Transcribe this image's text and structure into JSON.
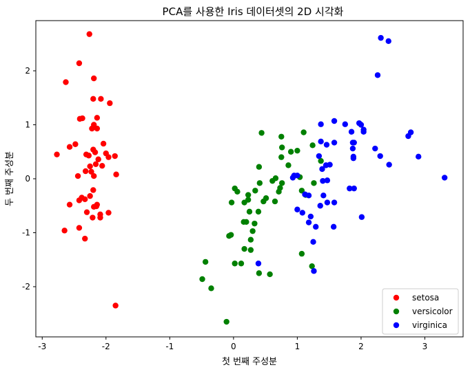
{
  "chart_data": {
    "type": "scatter",
    "title": "PCA를 사용한 Iris 데이터셋의 2D 시각화",
    "xlabel": "첫 번째 주성분",
    "ylabel": "두 번째 주성분",
    "xlim": [
      -3.1,
      3.6
    ],
    "ylim": [
      -2.93,
      2.93
    ],
    "xticks": [
      -3,
      -2,
      -1,
      0,
      1,
      2,
      3
    ],
    "xtick_labels": [
      "-3",
      "-2",
      "-1",
      "0",
      "1",
      "2",
      "3"
    ],
    "yticks": [
      -2,
      -1,
      0,
      1,
      2
    ],
    "ytick_labels": [
      "-2",
      "-1",
      "0",
      "1",
      "2"
    ],
    "grid": false,
    "legend_position": "lower-right",
    "series": [
      {
        "name": "setosa",
        "color": "#ff0000",
        "points": [
          [
            -2.26,
            2.68
          ],
          [
            -2.42,
            2.14
          ],
          [
            -2.63,
            1.79
          ],
          [
            -2.19,
            1.86
          ],
          [
            -2.08,
            1.48
          ],
          [
            -2.2,
            1.48
          ],
          [
            -1.94,
            1.4
          ],
          [
            -2.41,
            1.11
          ],
          [
            -2.37,
            1.12
          ],
          [
            -2.14,
            1.13
          ],
          [
            -2.19,
            1.0
          ],
          [
            -2.22,
            0.93
          ],
          [
            -2.14,
            0.93
          ],
          [
            -2.48,
            0.64
          ],
          [
            -2.57,
            0.59
          ],
          [
            -2.04,
            0.65
          ],
          [
            -2.77,
            0.45
          ],
          [
            -2.31,
            0.45
          ],
          [
            -2.27,
            0.43
          ],
          [
            -2.0,
            0.47
          ],
          [
            -1.96,
            0.4
          ],
          [
            -1.86,
            0.42
          ],
          [
            -2.2,
            0.54
          ],
          [
            -2.17,
            0.49
          ],
          [
            -2.12,
            0.36
          ],
          [
            -2.16,
            0.27
          ],
          [
            -2.06,
            0.24
          ],
          [
            -2.25,
            0.23
          ],
          [
            -2.32,
            0.14
          ],
          [
            -2.23,
            0.13
          ],
          [
            -2.44,
            0.05
          ],
          [
            -2.19,
            0.05
          ],
          [
            -1.84,
            0.08
          ],
          [
            -2.2,
            -0.21
          ],
          [
            -2.38,
            -0.35
          ],
          [
            -2.33,
            -0.38
          ],
          [
            -2.42,
            -0.4
          ],
          [
            -2.25,
            -0.32
          ],
          [
            -2.57,
            -0.48
          ],
          [
            -2.14,
            -0.48
          ],
          [
            -2.19,
            -0.52
          ],
          [
            -2.15,
            -0.51
          ],
          [
            -2.3,
            -0.62
          ],
          [
            -2.09,
            -0.66
          ],
          [
            -1.96,
            -0.63
          ],
          [
            -2.09,
            -0.72
          ],
          [
            -2.21,
            -0.72
          ],
          [
            -2.42,
            -0.91
          ],
          [
            -2.65,
            -0.96
          ],
          [
            -2.33,
            -1.11
          ],
          [
            -1.85,
            -2.35
          ]
        ]
      },
      {
        "name": "versicolor",
        "color": "#008000",
        "points": [
          [
            0.44,
            0.85
          ],
          [
            1.1,
            0.86
          ],
          [
            0.75,
            0.78
          ],
          [
            1.24,
            0.62
          ],
          [
            0.76,
            0.58
          ],
          [
            1.0,
            0.52
          ],
          [
            0.9,
            0.5
          ],
          [
            1.37,
            0.33
          ],
          [
            0.75,
            0.4
          ],
          [
            0.86,
            0.25
          ],
          [
            0.4,
            0.22
          ],
          [
            0.66,
            0.01
          ],
          [
            0.61,
            -0.04
          ],
          [
            0.76,
            -0.08
          ],
          [
            1.04,
            0.03
          ],
          [
            0.41,
            -0.08
          ],
          [
            0.73,
            -0.17
          ],
          [
            0.02,
            -0.18
          ],
          [
            0.06,
            -0.24
          ],
          [
            0.71,
            -0.24
          ],
          [
            1.07,
            -0.22
          ],
          [
            0.34,
            -0.22
          ],
          [
            0.23,
            -0.3
          ],
          [
            0.51,
            -0.36
          ],
          [
            0.23,
            -0.39
          ],
          [
            1.13,
            -0.3
          ],
          [
            1.26,
            -0.08
          ],
          [
            0.47,
            -0.42
          ],
          [
            0.65,
            -0.42
          ],
          [
            -0.03,
            -0.44
          ],
          [
            0.17,
            -0.44
          ],
          [
            0.25,
            -0.61
          ],
          [
            0.39,
            -0.61
          ],
          [
            0.2,
            -0.8
          ],
          [
            0.16,
            -0.8
          ],
          [
            0.33,
            -0.83
          ],
          [
            0.3,
            -0.97
          ],
          [
            0.27,
            -1.13
          ],
          [
            -0.04,
            -1.04
          ],
          [
            -0.07,
            -1.06
          ],
          [
            0.17,
            -1.3
          ],
          [
            0.27,
            -1.32
          ],
          [
            1.07,
            -1.39
          ],
          [
            0.02,
            -1.57
          ],
          [
            0.12,
            -1.57
          ],
          [
            -0.44,
            -1.54
          ],
          [
            0.4,
            -1.75
          ],
          [
            0.57,
            -1.77
          ],
          [
            -0.49,
            -1.86
          ],
          [
            -0.35,
            -2.03
          ],
          [
            -0.11,
            -2.65
          ],
          [
            1.23,
            -1.62
          ]
        ]
      },
      {
        "name": "virginica",
        "color": "#0000ff",
        "points": [
          [
            2.31,
            2.61
          ],
          [
            2.43,
            2.55
          ],
          [
            2.26,
            1.92
          ],
          [
            1.58,
            1.07
          ],
          [
            1.75,
            1.01
          ],
          [
            1.37,
            1.01
          ],
          [
            1.97,
            1.03
          ],
          [
            2.0,
            1.0
          ],
          [
            2.04,
            0.91
          ],
          [
            2.04,
            0.87
          ],
          [
            1.85,
            0.87
          ],
          [
            1.89,
            0.67
          ],
          [
            1.87,
            0.67
          ],
          [
            1.58,
            0.67
          ],
          [
            2.78,
            0.86
          ],
          [
            2.74,
            0.79
          ],
          [
            1.37,
            0.69
          ],
          [
            2.22,
            0.56
          ],
          [
            1.87,
            0.56
          ],
          [
            1.46,
            0.63
          ],
          [
            2.3,
            0.42
          ],
          [
            2.44,
            0.26
          ],
          [
            2.9,
            0.41
          ],
          [
            1.88,
            0.41
          ],
          [
            1.88,
            0.38
          ],
          [
            1.34,
            0.42
          ],
          [
            1.51,
            0.26
          ],
          [
            1.45,
            0.25
          ],
          [
            1.39,
            0.18
          ],
          [
            0.95,
            0.06
          ],
          [
            1.0,
            0.06
          ],
          [
            0.93,
            0.02
          ],
          [
            1.47,
            -0.03
          ],
          [
            1.4,
            -0.04
          ],
          [
            3.31,
            0.02
          ],
          [
            1.82,
            -0.18
          ],
          [
            1.89,
            -0.18
          ],
          [
            1.41,
            -0.31
          ],
          [
            1.12,
            -0.29
          ],
          [
            1.18,
            -0.31
          ],
          [
            1.47,
            -0.44
          ],
          [
            1.58,
            -0.44
          ],
          [
            1.36,
            -0.5
          ],
          [
            1.0,
            -0.57
          ],
          [
            1.08,
            -0.63
          ],
          [
            1.21,
            -0.7
          ],
          [
            2.01,
            -0.71
          ],
          [
            1.18,
            -0.81
          ],
          [
            1.57,
            -0.89
          ],
          [
            1.29,
            -0.89
          ],
          [
            1.25,
            -1.17
          ],
          [
            0.39,
            -1.57
          ],
          [
            1.26,
            -1.71
          ]
        ]
      }
    ]
  }
}
